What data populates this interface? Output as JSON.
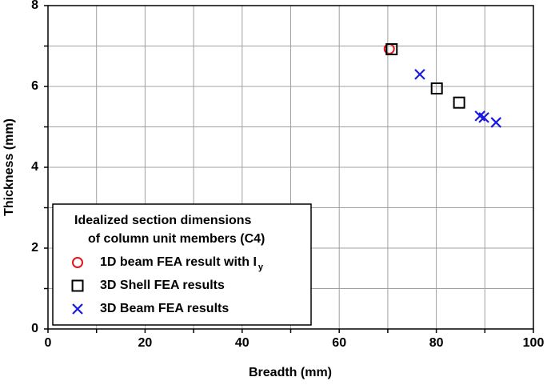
{
  "chart_data": {
    "type": "scatter",
    "x_label": "Breadth (mm)",
    "y_label": "Thickness (mm)",
    "xlim": [
      0,
      100
    ],
    "ylim": [
      0,
      8
    ],
    "xticks": [
      0,
      20,
      40,
      60,
      80,
      100
    ],
    "yticks": [
      0,
      2,
      4,
      6,
      8
    ],
    "minor_xticks": [
      10,
      30,
      50,
      70,
      90
    ],
    "minor_yticks": [
      1,
      3,
      5,
      7
    ],
    "grid": true,
    "legend_title": [
      "Idealized section dimensions",
      "of column unit members (C4)"
    ],
    "legend_position": "lower-left",
    "series": [
      {
        "name": "1D beam FEA result with I",
        "name_subscript": "y",
        "marker": "circle",
        "color": "#e0161b",
        "x": [
          70.3
        ],
        "values": [
          6.93
        ]
      },
      {
        "name": "3D Shell FEA results",
        "marker": "square",
        "color": "#000000",
        "x": [
          70.8,
          80.1,
          84.7
        ],
        "values": [
          6.92,
          5.95,
          5.6
        ]
      },
      {
        "name": "3D Beam FEA results",
        "marker": "cross",
        "color": "#1a1ae6",
        "x": [
          76.6,
          89.0,
          89.8,
          92.3
        ],
        "values": [
          6.3,
          5.27,
          5.23,
          5.11
        ]
      }
    ]
  }
}
